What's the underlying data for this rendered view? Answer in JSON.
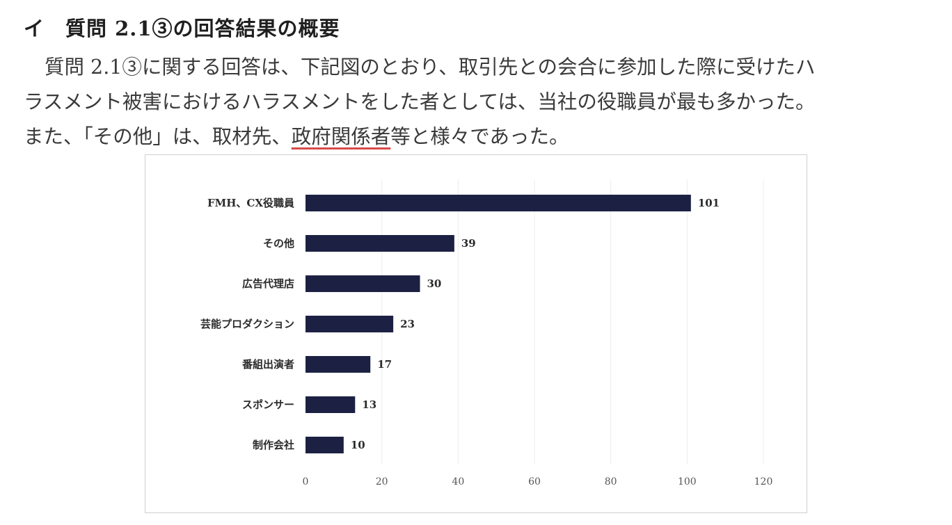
{
  "heading": {
    "marker": "イ",
    "title": "質問 2.1③の回答結果の概要"
  },
  "paragraph": {
    "line1": "質問 2.1③に関する回答は、下記図のとおり、取引先との会合に参加した際に受けたハ",
    "line2": "ラスメント被害におけるハラスメントをした者としては、当社の役職員が最も多かった。",
    "line3_pre": "また、「その他」は、取材先、",
    "line3_underlined": "政府関係者",
    "line3_post": "等と様々であった。"
  },
  "chart_data": {
    "type": "bar",
    "orientation": "horizontal",
    "categories": [
      "FMH、CX役職員",
      "その他",
      "広告代理店",
      "芸能プロダクション",
      "番組出演者",
      "スポンサー",
      "制作会社"
    ],
    "values": [
      101,
      39,
      30,
      23,
      17,
      13,
      10
    ],
    "xlim": [
      0,
      120
    ],
    "xticks": [
      "0",
      "20",
      "40",
      "60",
      "80",
      "100",
      "120"
    ],
    "bar_color": "#1c2143",
    "grid": true,
    "legend": "none"
  }
}
